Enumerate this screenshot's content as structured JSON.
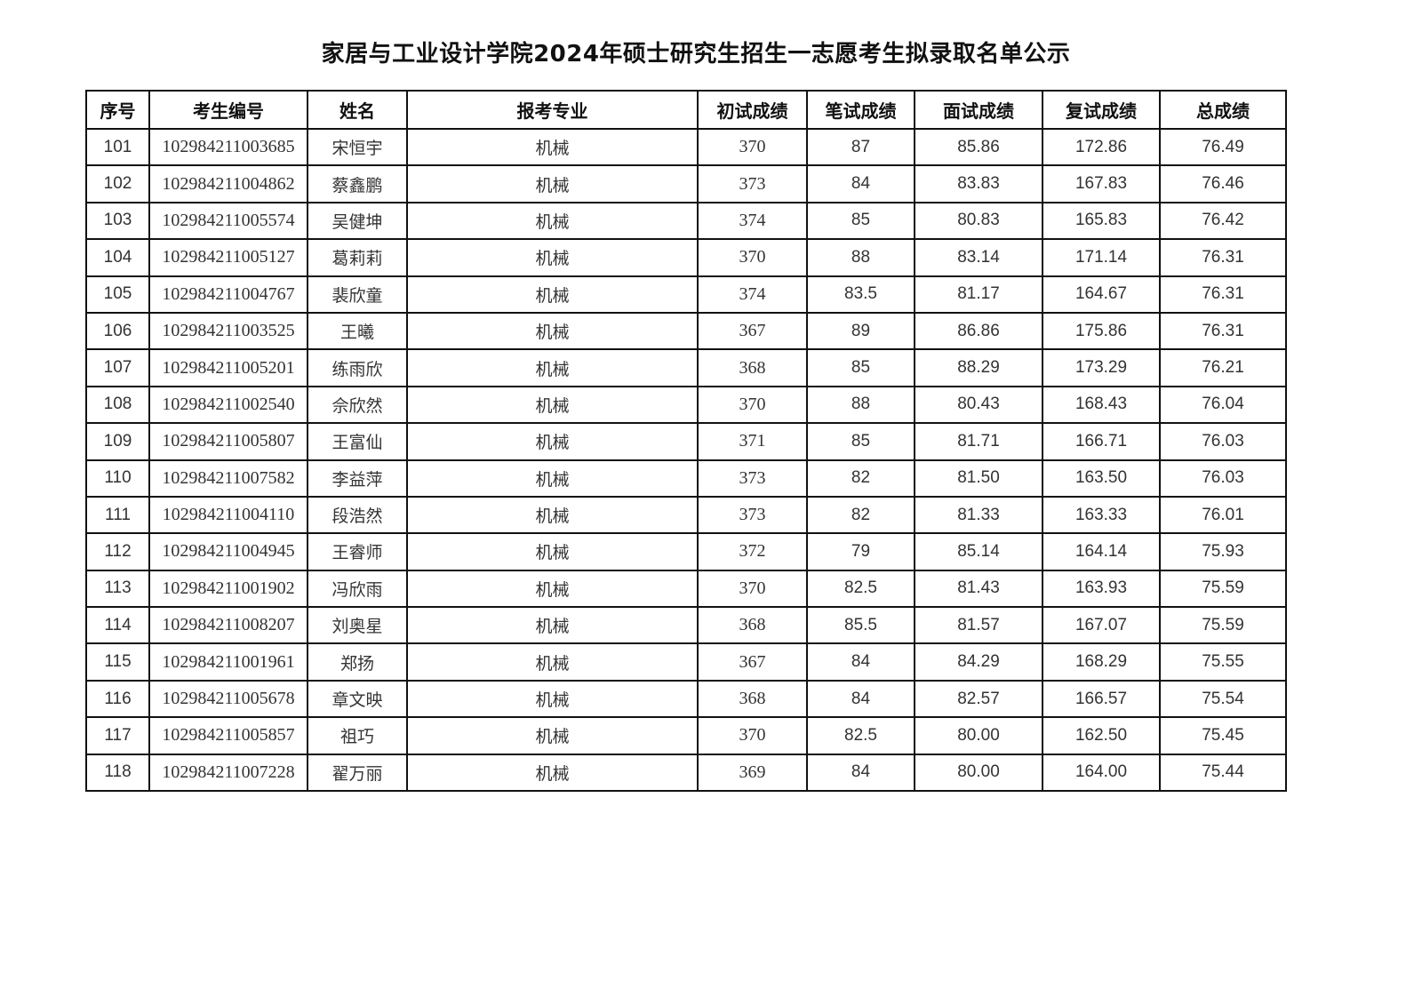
{
  "title": "家居与工业设计学院2024年硕士研究生招生一志愿考生拟录取名单公示",
  "headers": [
    "序号",
    "考生编号",
    "姓名",
    "报考专业",
    "初试成绩",
    "笔试成绩",
    "面试成绩",
    "复试成绩",
    "总成绩"
  ],
  "rows": [
    [
      "101",
      "102984211003685",
      "宋恒宇",
      "机械",
      "370",
      "87",
      "85.86",
      "172.86",
      "76.49"
    ],
    [
      "102",
      "102984211004862",
      "蔡鑫鹏",
      "机械",
      "373",
      "84",
      "83.83",
      "167.83",
      "76.46"
    ],
    [
      "103",
      "102984211005574",
      "吴健坤",
      "机械",
      "374",
      "85",
      "80.83",
      "165.83",
      "76.42"
    ],
    [
      "104",
      "102984211005127",
      "葛莉莉",
      "机械",
      "370",
      "88",
      "83.14",
      "171.14",
      "76.31"
    ],
    [
      "105",
      "102984211004767",
      "裴欣童",
      "机械",
      "374",
      "83.5",
      "81.17",
      "164.67",
      "76.31"
    ],
    [
      "106",
      "102984211003525",
      "王曦",
      "机械",
      "367",
      "89",
      "86.86",
      "175.86",
      "76.31"
    ],
    [
      "107",
      "102984211005201",
      "练雨欣",
      "机械",
      "368",
      "85",
      "88.29",
      "173.29",
      "76.21"
    ],
    [
      "108",
      "102984211002540",
      "佘欣然",
      "机械",
      "370",
      "88",
      "80.43",
      "168.43",
      "76.04"
    ],
    [
      "109",
      "102984211005807",
      "王富仙",
      "机械",
      "371",
      "85",
      "81.71",
      "166.71",
      "76.03"
    ],
    [
      "110",
      "102984211007582",
      "李益萍",
      "机械",
      "373",
      "82",
      "81.50",
      "163.50",
      "76.03"
    ],
    [
      "111",
      "102984211004110",
      "段浩然",
      "机械",
      "373",
      "82",
      "81.33",
      "163.33",
      "76.01"
    ],
    [
      "112",
      "102984211004945",
      "王睿师",
      "机械",
      "372",
      "79",
      "85.14",
      "164.14",
      "75.93"
    ],
    [
      "113",
      "102984211001902",
      "冯欣雨",
      "机械",
      "370",
      "82.5",
      "81.43",
      "163.93",
      "75.59"
    ],
    [
      "114",
      "102984211008207",
      "刘奥星",
      "机械",
      "368",
      "85.5",
      "81.57",
      "167.07",
      "75.59"
    ],
    [
      "115",
      "102984211001961",
      "郑扬",
      "机械",
      "367",
      "84",
      "84.29",
      "168.29",
      "75.55"
    ],
    [
      "116",
      "102984211005678",
      "章文映",
      "机械",
      "368",
      "84",
      "82.57",
      "166.57",
      "75.54"
    ],
    [
      "117",
      "102984211005857",
      "祖巧",
      "机械",
      "370",
      "82.5",
      "80.00",
      "162.50",
      "75.45"
    ],
    [
      "118",
      "102984211007228",
      "翟万丽",
      "机械",
      "369",
      "84",
      "80.00",
      "164.00",
      "75.44"
    ]
  ]
}
